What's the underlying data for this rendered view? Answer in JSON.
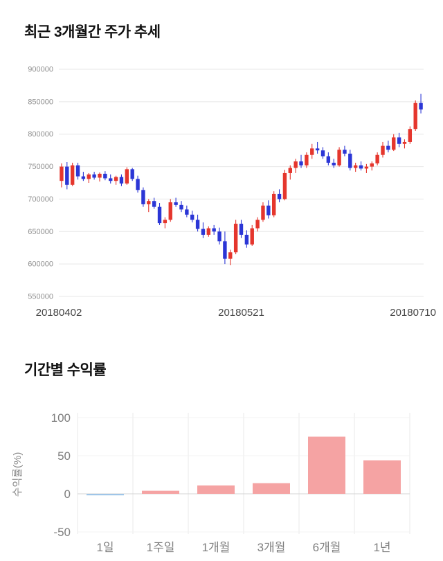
{
  "chart_data": [
    {
      "type": "candlestick",
      "title": "최근 3개월간 주가 추세",
      "x_labels": [
        "20180402",
        "20180521",
        "20180710"
      ],
      "y_ticks": [
        900000,
        850000,
        800000,
        750000,
        700000,
        650000,
        600000,
        550000
      ],
      "ylim": [
        550000,
        900000
      ],
      "grid": true,
      "up_color": "#e5362d",
      "down_color": "#2b36d6",
      "candle_format": [
        "open",
        "high",
        "low",
        "close"
      ],
      "candles": [
        [
          728000,
          755000,
          718000,
          750000
        ],
        [
          750000,
          757000,
          715000,
          722000
        ],
        [
          722000,
          756000,
          720000,
          752000
        ],
        [
          752000,
          756000,
          730000,
          735000
        ],
        [
          735000,
          742000,
          728000,
          731000
        ],
        [
          731000,
          740000,
          725000,
          738000
        ],
        [
          738000,
          742000,
          730000,
          733000
        ],
        [
          733000,
          741000,
          727000,
          739000
        ],
        [
          739000,
          743000,
          729000,
          732000
        ],
        [
          732000,
          738000,
          724000,
          728000
        ],
        [
          728000,
          736000,
          722000,
          734000
        ],
        [
          734000,
          738000,
          720000,
          724000
        ],
        [
          724000,
          749000,
          722000,
          746000
        ],
        [
          746000,
          748000,
          728000,
          731000
        ],
        [
          731000,
          736000,
          710000,
          714000
        ],
        [
          714000,
          718000,
          688000,
          692000
        ],
        [
          692000,
          700000,
          680000,
          697000
        ],
        [
          697000,
          702000,
          685000,
          688000
        ],
        [
          688000,
          694000,
          660000,
          663000
        ],
        [
          663000,
          672000,
          655000,
          668000
        ],
        [
          668000,
          700000,
          665000,
          695000
        ],
        [
          695000,
          702000,
          688000,
          691000
        ],
        [
          691000,
          697000,
          680000,
          684000
        ],
        [
          684000,
          690000,
          672000,
          676000
        ],
        [
          676000,
          682000,
          664000,
          668000
        ],
        [
          668000,
          676000,
          650000,
          654000
        ],
        [
          654000,
          664000,
          640000,
          645000
        ],
        [
          645000,
          658000,
          642000,
          655000
        ],
        [
          655000,
          660000,
          645000,
          650000
        ],
        [
          650000,
          656000,
          630000,
          635000
        ],
        [
          635000,
          650000,
          600000,
          608000
        ],
        [
          608000,
          622000,
          598000,
          618000
        ],
        [
          618000,
          668000,
          615000,
          662000
        ],
        [
          662000,
          668000,
          640000,
          645000
        ],
        [
          645000,
          652000,
          625000,
          630000
        ],
        [
          630000,
          660000,
          628000,
          655000
        ],
        [
          655000,
          672000,
          650000,
          668000
        ],
        [
          668000,
          695000,
          665000,
          690000
        ],
        [
          690000,
          698000,
          670000,
          675000
        ],
        [
          675000,
          712000,
          672000,
          708000
        ],
        [
          708000,
          715000,
          695000,
          700000
        ],
        [
          700000,
          745000,
          698000,
          740000
        ],
        [
          740000,
          752000,
          730000,
          748000
        ],
        [
          748000,
          762000,
          740000,
          758000
        ],
        [
          758000,
          768000,
          748000,
          752000
        ],
        [
          752000,
          772000,
          748000,
          768000
        ],
        [
          768000,
          785000,
          762000,
          778000
        ],
        [
          778000,
          788000,
          770000,
          775000
        ],
        [
          775000,
          780000,
          762000,
          766000
        ],
        [
          766000,
          772000,
          752000,
          756000
        ],
        [
          756000,
          762000,
          748000,
          752000
        ],
        [
          752000,
          780000,
          750000,
          776000
        ],
        [
          776000,
          782000,
          766000,
          770000
        ],
        [
          770000,
          776000,
          744000,
          748000
        ],
        [
          748000,
          756000,
          742000,
          752000
        ],
        [
          752000,
          758000,
          744000,
          747000
        ],
        [
          747000,
          754000,
          740000,
          750000
        ],
        [
          750000,
          758000,
          744000,
          755000
        ],
        [
          755000,
          772000,
          752000,
          768000
        ],
        [
          768000,
          788000,
          764000,
          782000
        ],
        [
          782000,
          790000,
          772000,
          776000
        ],
        [
          776000,
          800000,
          774000,
          795000
        ],
        [
          795000,
          802000,
          780000,
          785000
        ],
        [
          785000,
          792000,
          778000,
          788000
        ],
        [
          788000,
          812000,
          785000,
          808000
        ],
        [
          808000,
          852000,
          805000,
          848000
        ],
        [
          848000,
          862000,
          832000,
          838000
        ]
      ]
    },
    {
      "type": "bar",
      "title": "기간별 수익률",
      "ylabel": "수익률(%)",
      "categories": [
        "1일",
        "1주일",
        "1개월",
        "3개월",
        "6개월",
        "1년"
      ],
      "values": [
        -2,
        4,
        11,
        14,
        75,
        44
      ],
      "y_ticks": [
        100,
        50,
        0,
        -50
      ],
      "ylim": [
        -50,
        100
      ],
      "grid": true,
      "legend": false,
      "positive_color": "#f5a3a3",
      "negative_color": "#9fc5e8"
    }
  ]
}
